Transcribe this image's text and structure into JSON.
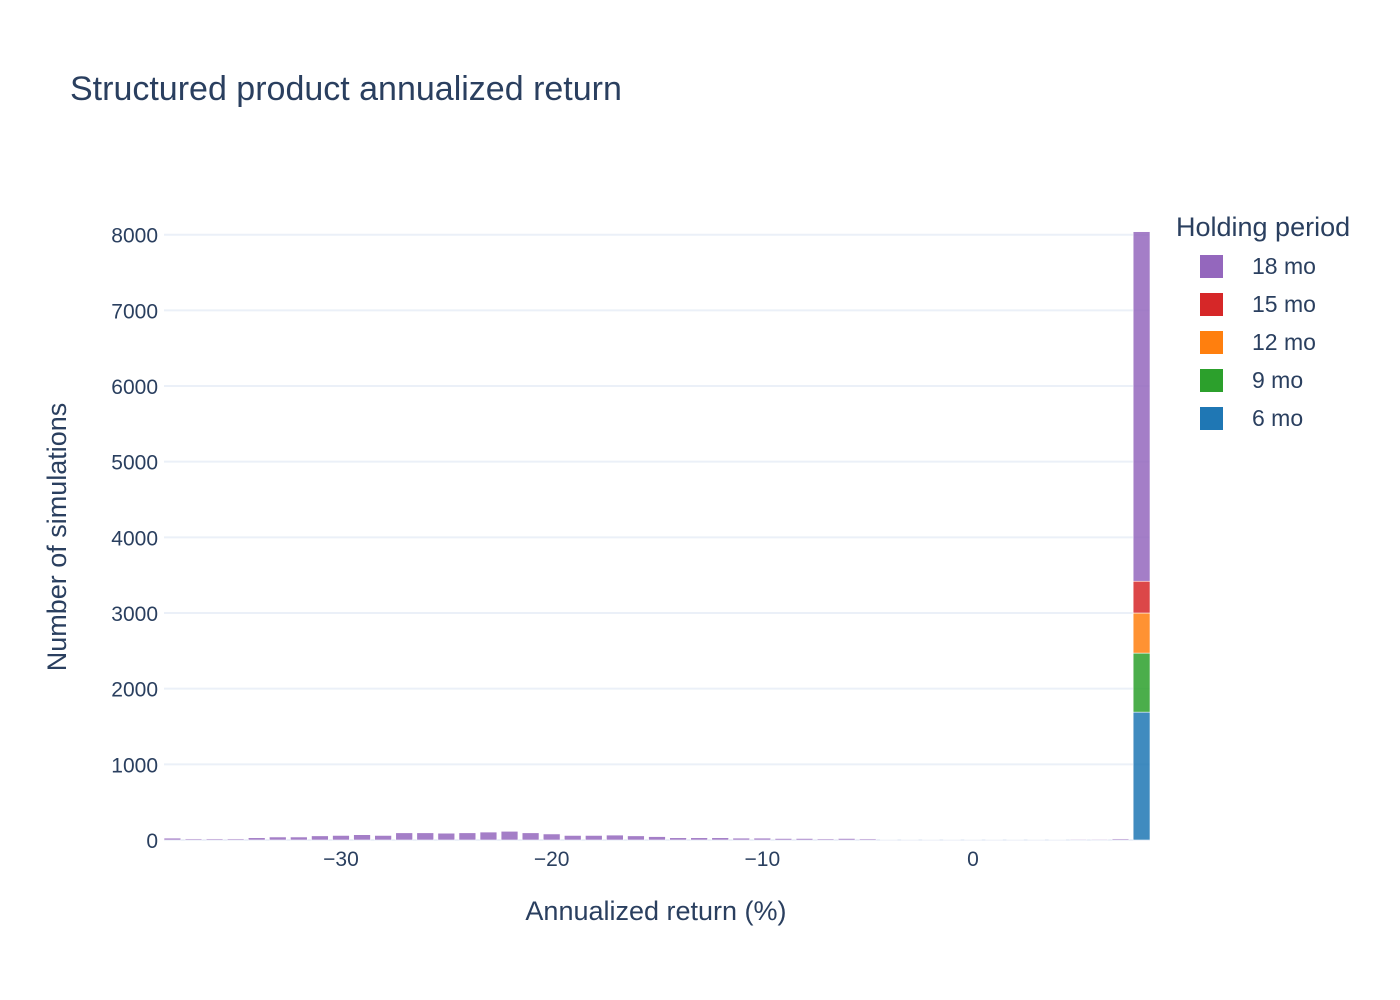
{
  "chart_data": {
    "type": "bar",
    "barmode": "stack",
    "title": "Structured product annualized return",
    "xlabel": "Annualized return (%)",
    "ylabel": "Number of simulations",
    "xlim": [
      -38.4,
      8.4
    ],
    "ylim": [
      0,
      8300
    ],
    "x_ticks": [
      -30,
      -20,
      -10,
      0
    ],
    "x_tick_labels": [
      "−30",
      "−20",
      "−10",
      "0"
    ],
    "y_ticks": [
      0,
      1000,
      2000,
      3000,
      4000,
      5000,
      6000,
      7000,
      8000
    ],
    "y_tick_labels": [
      "0",
      "1000",
      "2000",
      "3000",
      "4000",
      "5000",
      "6000",
      "7000",
      "8000"
    ],
    "grid": true,
    "legend": {
      "title": "Holding period",
      "placement": "top-right"
    },
    "bin_width": 1.0,
    "x": [
      -38,
      -37,
      -36,
      -35,
      -34,
      -33,
      -32,
      -31,
      -30,
      -29,
      -28,
      -27,
      -26,
      -25,
      -24,
      -23,
      -22,
      -21,
      -20,
      -19,
      -18,
      -17,
      -16,
      -15,
      -14,
      -13,
      -12,
      -11,
      -10,
      -9,
      -8,
      -7,
      -6,
      -5,
      -4,
      -3,
      -2,
      -1,
      0,
      1,
      2,
      3,
      4,
      5,
      6,
      7,
      8
    ],
    "series": [
      {
        "name": "6 mo",
        "color": "#1f77b4",
        "values": [
          0,
          0,
          0,
          0,
          0,
          0,
          0,
          0,
          0,
          0,
          0,
          0,
          0,
          0,
          0,
          0,
          0,
          0,
          0,
          0,
          0,
          0,
          0,
          0,
          0,
          0,
          0,
          0,
          0,
          0,
          0,
          0,
          0,
          0,
          0,
          0,
          0,
          0,
          0,
          0,
          0,
          0,
          0,
          0,
          0,
          0,
          1690
        ]
      },
      {
        "name": "9 mo",
        "color": "#2ca02c",
        "values": [
          0,
          0,
          0,
          0,
          0,
          0,
          0,
          0,
          0,
          0,
          0,
          0,
          0,
          0,
          0,
          0,
          0,
          0,
          0,
          0,
          0,
          0,
          0,
          0,
          0,
          0,
          0,
          0,
          0,
          0,
          0,
          0,
          0,
          0,
          0,
          0,
          0,
          0,
          0,
          0,
          0,
          0,
          0,
          0,
          0,
          0,
          780
        ]
      },
      {
        "name": "12 mo",
        "color": "#ff7f0e",
        "values": [
          0,
          0,
          0,
          0,
          0,
          0,
          0,
          0,
          0,
          0,
          0,
          0,
          0,
          0,
          0,
          0,
          0,
          0,
          0,
          0,
          0,
          0,
          0,
          0,
          0,
          0,
          0,
          0,
          0,
          0,
          0,
          0,
          0,
          0,
          0,
          0,
          0,
          0,
          0,
          0,
          0,
          0,
          0,
          0,
          0,
          0,
          530
        ]
      },
      {
        "name": "15 mo",
        "color": "#d62728",
        "values": [
          0,
          0,
          0,
          0,
          0,
          0,
          0,
          0,
          0,
          0,
          0,
          0,
          0,
          0,
          0,
          0,
          0,
          0,
          0,
          0,
          0,
          0,
          0,
          0,
          0,
          0,
          0,
          0,
          0,
          0,
          0,
          0,
          0,
          0,
          0,
          0,
          0,
          0,
          0,
          0,
          0,
          0,
          0,
          0,
          0,
          0,
          420
        ]
      },
      {
        "name": "18 mo",
        "color": "#9467bd",
        "values": [
          25,
          15,
          15,
          15,
          30,
          40,
          40,
          55,
          60,
          70,
          60,
          95,
          95,
          90,
          95,
          105,
          115,
          95,
          80,
          60,
          60,
          65,
          55,
          45,
          30,
          30,
          30,
          25,
          25,
          20,
          20,
          15,
          20,
          15,
          5,
          5,
          5,
          5,
          5,
          5,
          5,
          5,
          5,
          10,
          10,
          15,
          4620
        ]
      }
    ]
  }
}
